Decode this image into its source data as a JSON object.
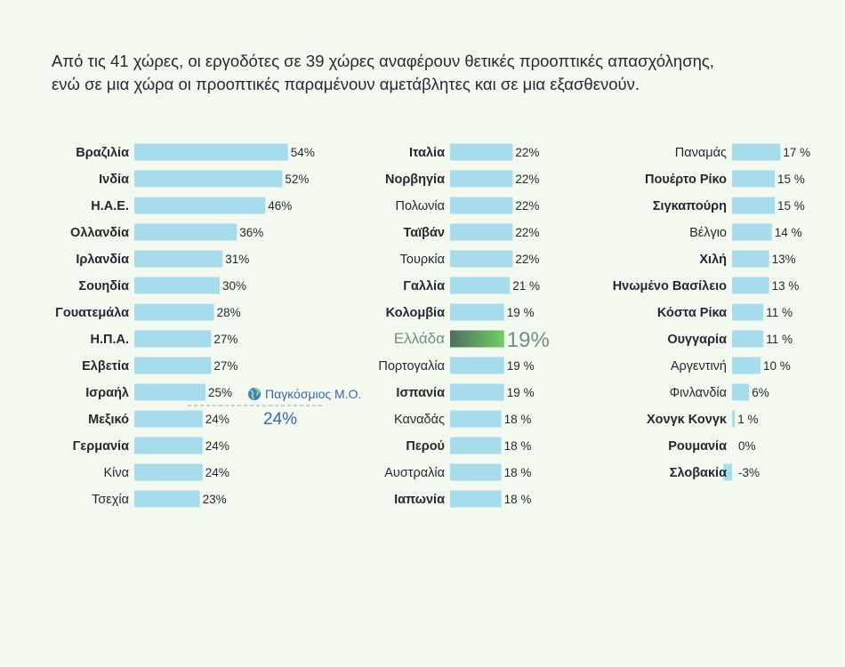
{
  "headline": {
    "line1": "Από τις 41 χώρες,  οι εργοδότες σε 39 χώρες αναφέρουν θετικές προοπτικές απασχόλησης,",
    "line2": "ενώ σε μια χώρα οι προοπτικές παραμένουν αμετάβλητες και σε μια εξασθενούν."
  },
  "colors": {
    "bar": "#a7dcec",
    "highlight_start": "#4e6e5d",
    "highlight_end": "#6fcf66",
    "highlight_text": "#6f8f80",
    "average": "#3a66b2",
    "average_icon": "#3f7fc4"
  },
  "chart_data": {
    "type": "bar",
    "orientation": "horizontal",
    "unit": "%",
    "highlight": "Ελλάδα",
    "average": {
      "label": "Παγκόσμιος Μ.Ο.",
      "value": 24,
      "display": "24%",
      "icon": "globe-icon"
    },
    "columns": [
      {
        "categories": [
          "Βραζιλία",
          "Ινδία",
          "Η.Α.Ε.",
          "Ολλανδία",
          "Ιρλανδία",
          "Σουηδία",
          "Γουατεμάλα",
          "Η.Π.Α.",
          "Ελβετία",
          "Ισραήλ",
          "Μεξικό",
          "Γερμανία",
          "Κίνα",
          "Τσεχία"
        ],
        "values": [
          54,
          52,
          46,
          36,
          31,
          30,
          28,
          27,
          27,
          25,
          24,
          24,
          24,
          23
        ],
        "labels": [
          "54%",
          "52%",
          "46%",
          "36%",
          "31%",
          "30%",
          "28%",
          "27%",
          "27%",
          "25%",
          "24%",
          "24%",
          "24%",
          "23%"
        ],
        "bold": [
          true,
          true,
          true,
          true,
          true,
          true,
          true,
          true,
          true,
          true,
          true,
          true,
          false,
          false
        ]
      },
      {
        "categories": [
          "Ιταλία",
          "Νορβηγία",
          "Πολωνία",
          "Ταϊβάν",
          "Τουρκία",
          "Γαλλία",
          "Κολομβία",
          "Ελλάδα",
          "Πορτογαλία",
          "Ισπανία",
          "Καναδάς",
          "Περού",
          "Αυστραλία",
          "Ιαπωνία"
        ],
        "values": [
          22,
          22,
          22,
          22,
          22,
          21,
          19,
          19,
          19,
          19,
          18,
          18,
          18,
          18
        ],
        "labels": [
          "22%",
          "22%",
          "22%",
          "22%",
          "22%",
          "21 %",
          "19 %",
          "19%",
          "19 %",
          "19 %",
          "18 %",
          "18 %",
          "18 %",
          "18 %"
        ],
        "bold": [
          true,
          true,
          false,
          true,
          false,
          true,
          true,
          false,
          false,
          true,
          false,
          true,
          false,
          true
        ]
      },
      {
        "categories": [
          "Παναμάς",
          "Πουέρτο Ρίκο",
          "Σιγκαπούρη",
          "Βέλγιο",
          "Χιλή",
          "Ηνωμένο Βασίλειο",
          "Κόστα Ρίκα",
          "Ουγγαρία",
          "Αργεντινή",
          "Φινλανδία",
          "Χονγκ Κονγκ",
          "Ρουμανία",
          "Σλοβακία"
        ],
        "values": [
          17,
          15,
          15,
          14,
          13,
          13,
          11,
          11,
          10,
          6,
          1,
          0,
          -3
        ],
        "labels": [
          "17 %",
          "15 %",
          "15 %",
          "14 %",
          "13%",
          "13 %",
          "11 %",
          "11 %",
          "10 %",
          "6%",
          "1 %",
          "0%",
          "-3%"
        ],
        "bold": [
          false,
          true,
          true,
          false,
          true,
          true,
          true,
          true,
          false,
          false,
          true,
          true,
          true
        ]
      }
    ]
  }
}
